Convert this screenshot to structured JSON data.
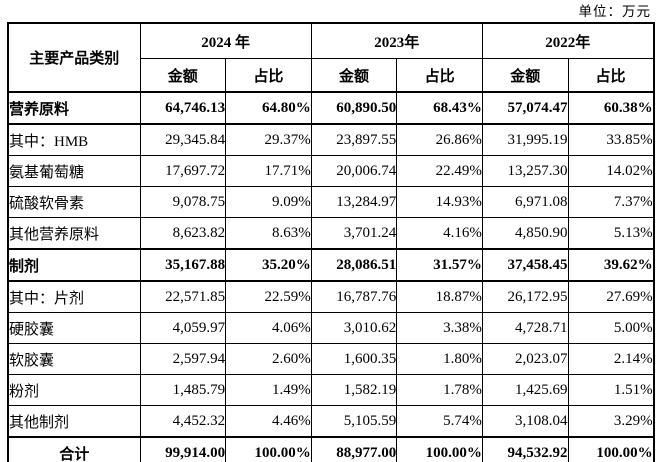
{
  "unit_label": "单位：万元",
  "table": {
    "category_header": "主要产品类别",
    "year_groups": [
      {
        "year": "2024 年",
        "amount_label": "金额",
        "ratio_label": "占比"
      },
      {
        "year": "2023年",
        "amount_label": "金额",
        "ratio_label": "占比"
      },
      {
        "year": "2022年",
        "amount_label": "金额",
        "ratio_label": "占比"
      }
    ],
    "rows": [
      {
        "category": "营养原料",
        "style": "section",
        "values": [
          "64,746.13",
          "64.80%",
          "60,890.50",
          "68.43%",
          "57,074.47",
          "60.38%"
        ]
      },
      {
        "category": "其中：HMB",
        "style": "normal",
        "values": [
          "29,345.84",
          "29.37%",
          "23,897.55",
          "26.86%",
          "31,995.19",
          "33.85%"
        ]
      },
      {
        "category": "氨基葡萄糖",
        "style": "normal",
        "values": [
          "17,697.72",
          "17.71%",
          "20,006.74",
          "22.49%",
          "13,257.30",
          "14.02%"
        ]
      },
      {
        "category": "硫酸软骨素",
        "style": "normal",
        "values": [
          "9,078.75",
          "9.09%",
          "13,284.97",
          "14.93%",
          "6,971.08",
          "7.37%"
        ]
      },
      {
        "category": "其他营养原料",
        "style": "normal",
        "values": [
          "8,623.82",
          "8.63%",
          "3,701.24",
          "4.16%",
          "4,850.90",
          "5.13%"
        ]
      },
      {
        "category": "制剂",
        "style": "section",
        "values": [
          "35,167.88",
          "35.20%",
          "28,086.51",
          "31.57%",
          "37,458.45",
          "39.62%"
        ]
      },
      {
        "category": "其中：片剂",
        "style": "normal",
        "values": [
          "22,571.85",
          "22.59%",
          "16,787.76",
          "18.87%",
          "26,172.95",
          "27.69%"
        ]
      },
      {
        "category": "硬胶囊",
        "style": "normal",
        "values": [
          "4,059.97",
          "4.06%",
          "3,010.62",
          "3.38%",
          "4,728.71",
          "5.00%"
        ]
      },
      {
        "category": "软胶囊",
        "style": "normal",
        "values": [
          "2,597.94",
          "2.60%",
          "1,600.35",
          "1.80%",
          "2,023.07",
          "2.14%"
        ]
      },
      {
        "category": "粉剂",
        "style": "normal",
        "values": [
          "1,485.79",
          "1.49%",
          "1,582.19",
          "1.78%",
          "1,425.69",
          "1.51%"
        ]
      },
      {
        "category": "其他制剂",
        "style": "normal",
        "values": [
          "4,452.32",
          "4.46%",
          "5,105.59",
          "5.74%",
          "3,108.04",
          "3.29%"
        ]
      },
      {
        "category": "合计",
        "style": "total",
        "values": [
          "99,914.00",
          "100.00%",
          "88,977.00",
          "100.00%",
          "94,532.92",
          "100.00%"
        ]
      }
    ]
  }
}
